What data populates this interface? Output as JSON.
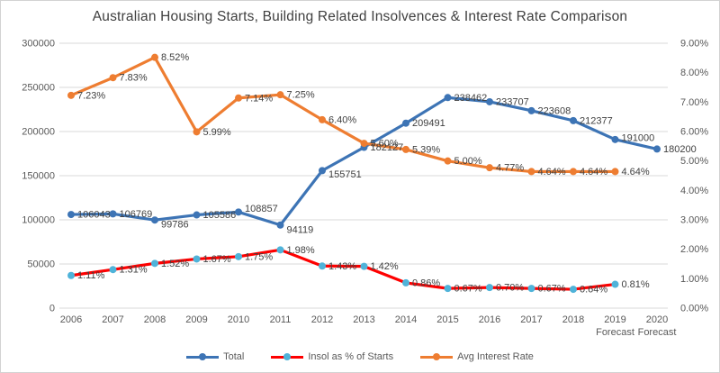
{
  "chart_data": {
    "type": "line",
    "title": "Australian Housing Starts, Building Related Insolvences & Interest Rate Comparison",
    "categories": [
      "2006",
      "2007",
      "2008",
      "2009",
      "2010",
      "2011",
      "2012",
      "2013",
      "2014",
      "2015",
      "2016",
      "2017",
      "2018",
      "2019",
      "2020"
    ],
    "category_sublabels": [
      "",
      "",
      "",
      "",
      "",
      "",
      "",
      "",
      "",
      "",
      "",
      "",
      "",
      "Forecast",
      "Forecast"
    ],
    "left_axis": {
      "min": 0,
      "max": 300000,
      "ticks": [
        "300000",
        "250000",
        "200000",
        "150000",
        "100000",
        "50000",
        "0"
      ]
    },
    "right_axis": {
      "min": 0,
      "max": 9,
      "ticks": [
        "9.00%",
        "8.00%",
        "7.00%",
        "6.00%",
        "5.00%",
        "4.00%",
        "3.00%",
        "2.00%",
        "1.00%",
        "0.00%"
      ]
    },
    "grid": true,
    "legend_position": "bottom",
    "series": [
      {
        "name": "Total",
        "axis": "left",
        "color": "#3d74b5",
        "marker_color": "#3d74b5",
        "values": [
          106043,
          106769,
          99786,
          105586,
          108857,
          94119,
          155751,
          182127,
          209491,
          238462,
          233707,
          223608,
          212377,
          191000,
          180200
        ],
        "labels": [
          "106043",
          "106769",
          "99786",
          "105586",
          "108857",
          "94119",
          "155751",
          "182127",
          "209491",
          "238462",
          "233707",
          "223608",
          "212377",
          "191000",
          "180200"
        ]
      },
      {
        "name": "Insol as % of Starts",
        "axis": "right",
        "color": "#fe0000",
        "marker_color": "#4fb3d9",
        "values": [
          1.11,
          1.31,
          1.52,
          1.67,
          1.75,
          1.98,
          1.43,
          1.42,
          0.86,
          0.67,
          0.7,
          0.67,
          0.64,
          0.81
        ],
        "labels": [
          "1.11%",
          "1.31%",
          "1.52%",
          "1.67%",
          "1.75%",
          "1.98%",
          "1.43%",
          "1.42%",
          "0.86%",
          "0.67%",
          "0.70%",
          "0.67%",
          "0.64%",
          "0.81%"
        ]
      },
      {
        "name": "Avg Interest Rate",
        "axis": "right",
        "color": "#ee7d31",
        "marker_color": "#ee7d31",
        "values": [
          7.23,
          7.83,
          8.52,
          5.99,
          7.14,
          7.25,
          6.4,
          5.6,
          5.39,
          5.0,
          4.77,
          4.64,
          4.64,
          4.64
        ],
        "labels": [
          "7.23%",
          "7.83%",
          "8.52%",
          "5.99%",
          "7.14%",
          "7.25%",
          "6.40%",
          "5.60%",
          "5.39%",
          "5.00%",
          "4.77%",
          "4.64%",
          "4.64%",
          "4.64%"
        ]
      }
    ],
    "colors": {
      "grid": "#d9d9d9",
      "axis_text": "#595959",
      "label_text": "#404040",
      "border": "#d3d3d3",
      "background": "#ffffff"
    }
  }
}
